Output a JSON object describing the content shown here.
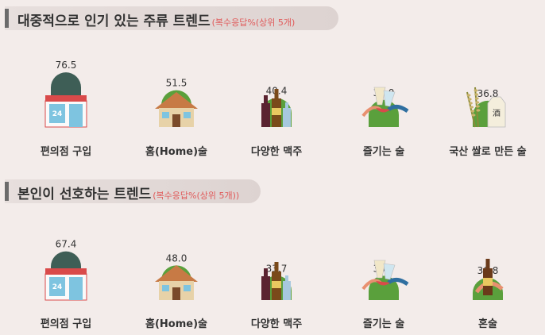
{
  "colors": {
    "green": "#5aa03c",
    "dark": "#3e5e56",
    "red": "#e05a5a",
    "text": "#333333"
  },
  "chart_data": [
    {
      "type": "bar",
      "title": "대중적으로 인기 있는 주류 트렌드",
      "subtitle": "(복수응답%(상위 5개)",
      "categories": [
        "편의점 구입",
        "홈(Home)술",
        "다양한 맥주",
        "즐기는 술",
        "국산 쌀로 만든 술"
      ],
      "values": [
        76.5,
        51.5,
        40.4,
        38.0,
        36.8
      ],
      "icons": [
        "convenience-store-icon",
        "house-icon",
        "beer-bottles-icon",
        "cheers-glasses-icon",
        "rice-wine-icon"
      ],
      "highlight_index": 0
    },
    {
      "type": "bar",
      "title": "본인이 선호하는 트렌드",
      "subtitle": "(복수응답%(상위 5개))",
      "categories": [
        "편의점 구입",
        "홈(Home)술",
        "다양한 맥주",
        "즐기는 술",
        "혼술"
      ],
      "values": [
        67.4,
        48.0,
        33.7,
        33.7,
        30.8
      ],
      "icons": [
        "convenience-store-icon",
        "house-icon",
        "beer-bottles-icon",
        "cheers-glasses-icon",
        "solo-drinking-icon"
      ],
      "highlight_index": 0
    }
  ]
}
